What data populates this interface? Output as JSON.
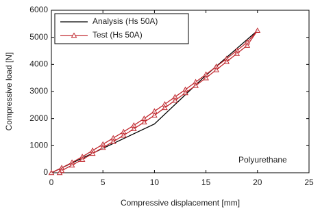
{
  "chart_data": {
    "type": "line",
    "xlabel": "Compressive displacement [mm]",
    "ylabel": "Compressive load [N]",
    "annotation": "Polyurethane",
    "xlim": [
      0,
      25
    ],
    "xticks": [
      0,
      5,
      10,
      15,
      20,
      25
    ],
    "ylim": [
      0,
      6000
    ],
    "yticks": [
      0,
      1000,
      2000,
      3000,
      4000,
      5000,
      6000
    ],
    "legend": "upper-left",
    "series": [
      {
        "name": "Analysis (Hs 50A)",
        "color": "#000000",
        "marker": "none",
        "x": [
          0,
          10,
          15,
          20
        ],
        "values": [
          0,
          1800,
          3600,
          5250
        ]
      },
      {
        "name": "Test (Hs 50A)",
        "color": "#c0272d",
        "marker": "triangle",
        "x": [
          0,
          1,
          2,
          3,
          4,
          5,
          6,
          7,
          8,
          9,
          10,
          11,
          12,
          13,
          14,
          15,
          16,
          17,
          18,
          19,
          20,
          19,
          18,
          17,
          16,
          15,
          14,
          13,
          12,
          11,
          10,
          9,
          8,
          7,
          6,
          5,
          4,
          3,
          2,
          1,
          0.8
        ],
        "values": [
          0,
          180,
          380,
          590,
          820,
          1050,
          1280,
          1510,
          1750,
          2000,
          2270,
          2530,
          2800,
          3070,
          3350,
          3630,
          3920,
          4210,
          4510,
          4820,
          5250,
          4700,
          4400,
          4100,
          3800,
          3500,
          3220,
          2950,
          2670,
          2400,
          2120,
          1870,
          1620,
          1380,
          1150,
          930,
          710,
          490,
          280,
          80,
          0
        ]
      }
    ]
  }
}
